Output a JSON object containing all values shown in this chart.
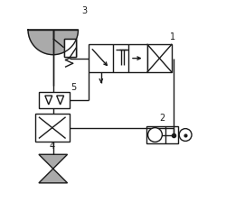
{
  "bg_color": "#ffffff",
  "line_color": "#1a1a1a",
  "gray_fill": "#aaaaaa",
  "figsize": [
    2.5,
    2.24
  ],
  "dpi": 100,
  "lw": 1.0
}
